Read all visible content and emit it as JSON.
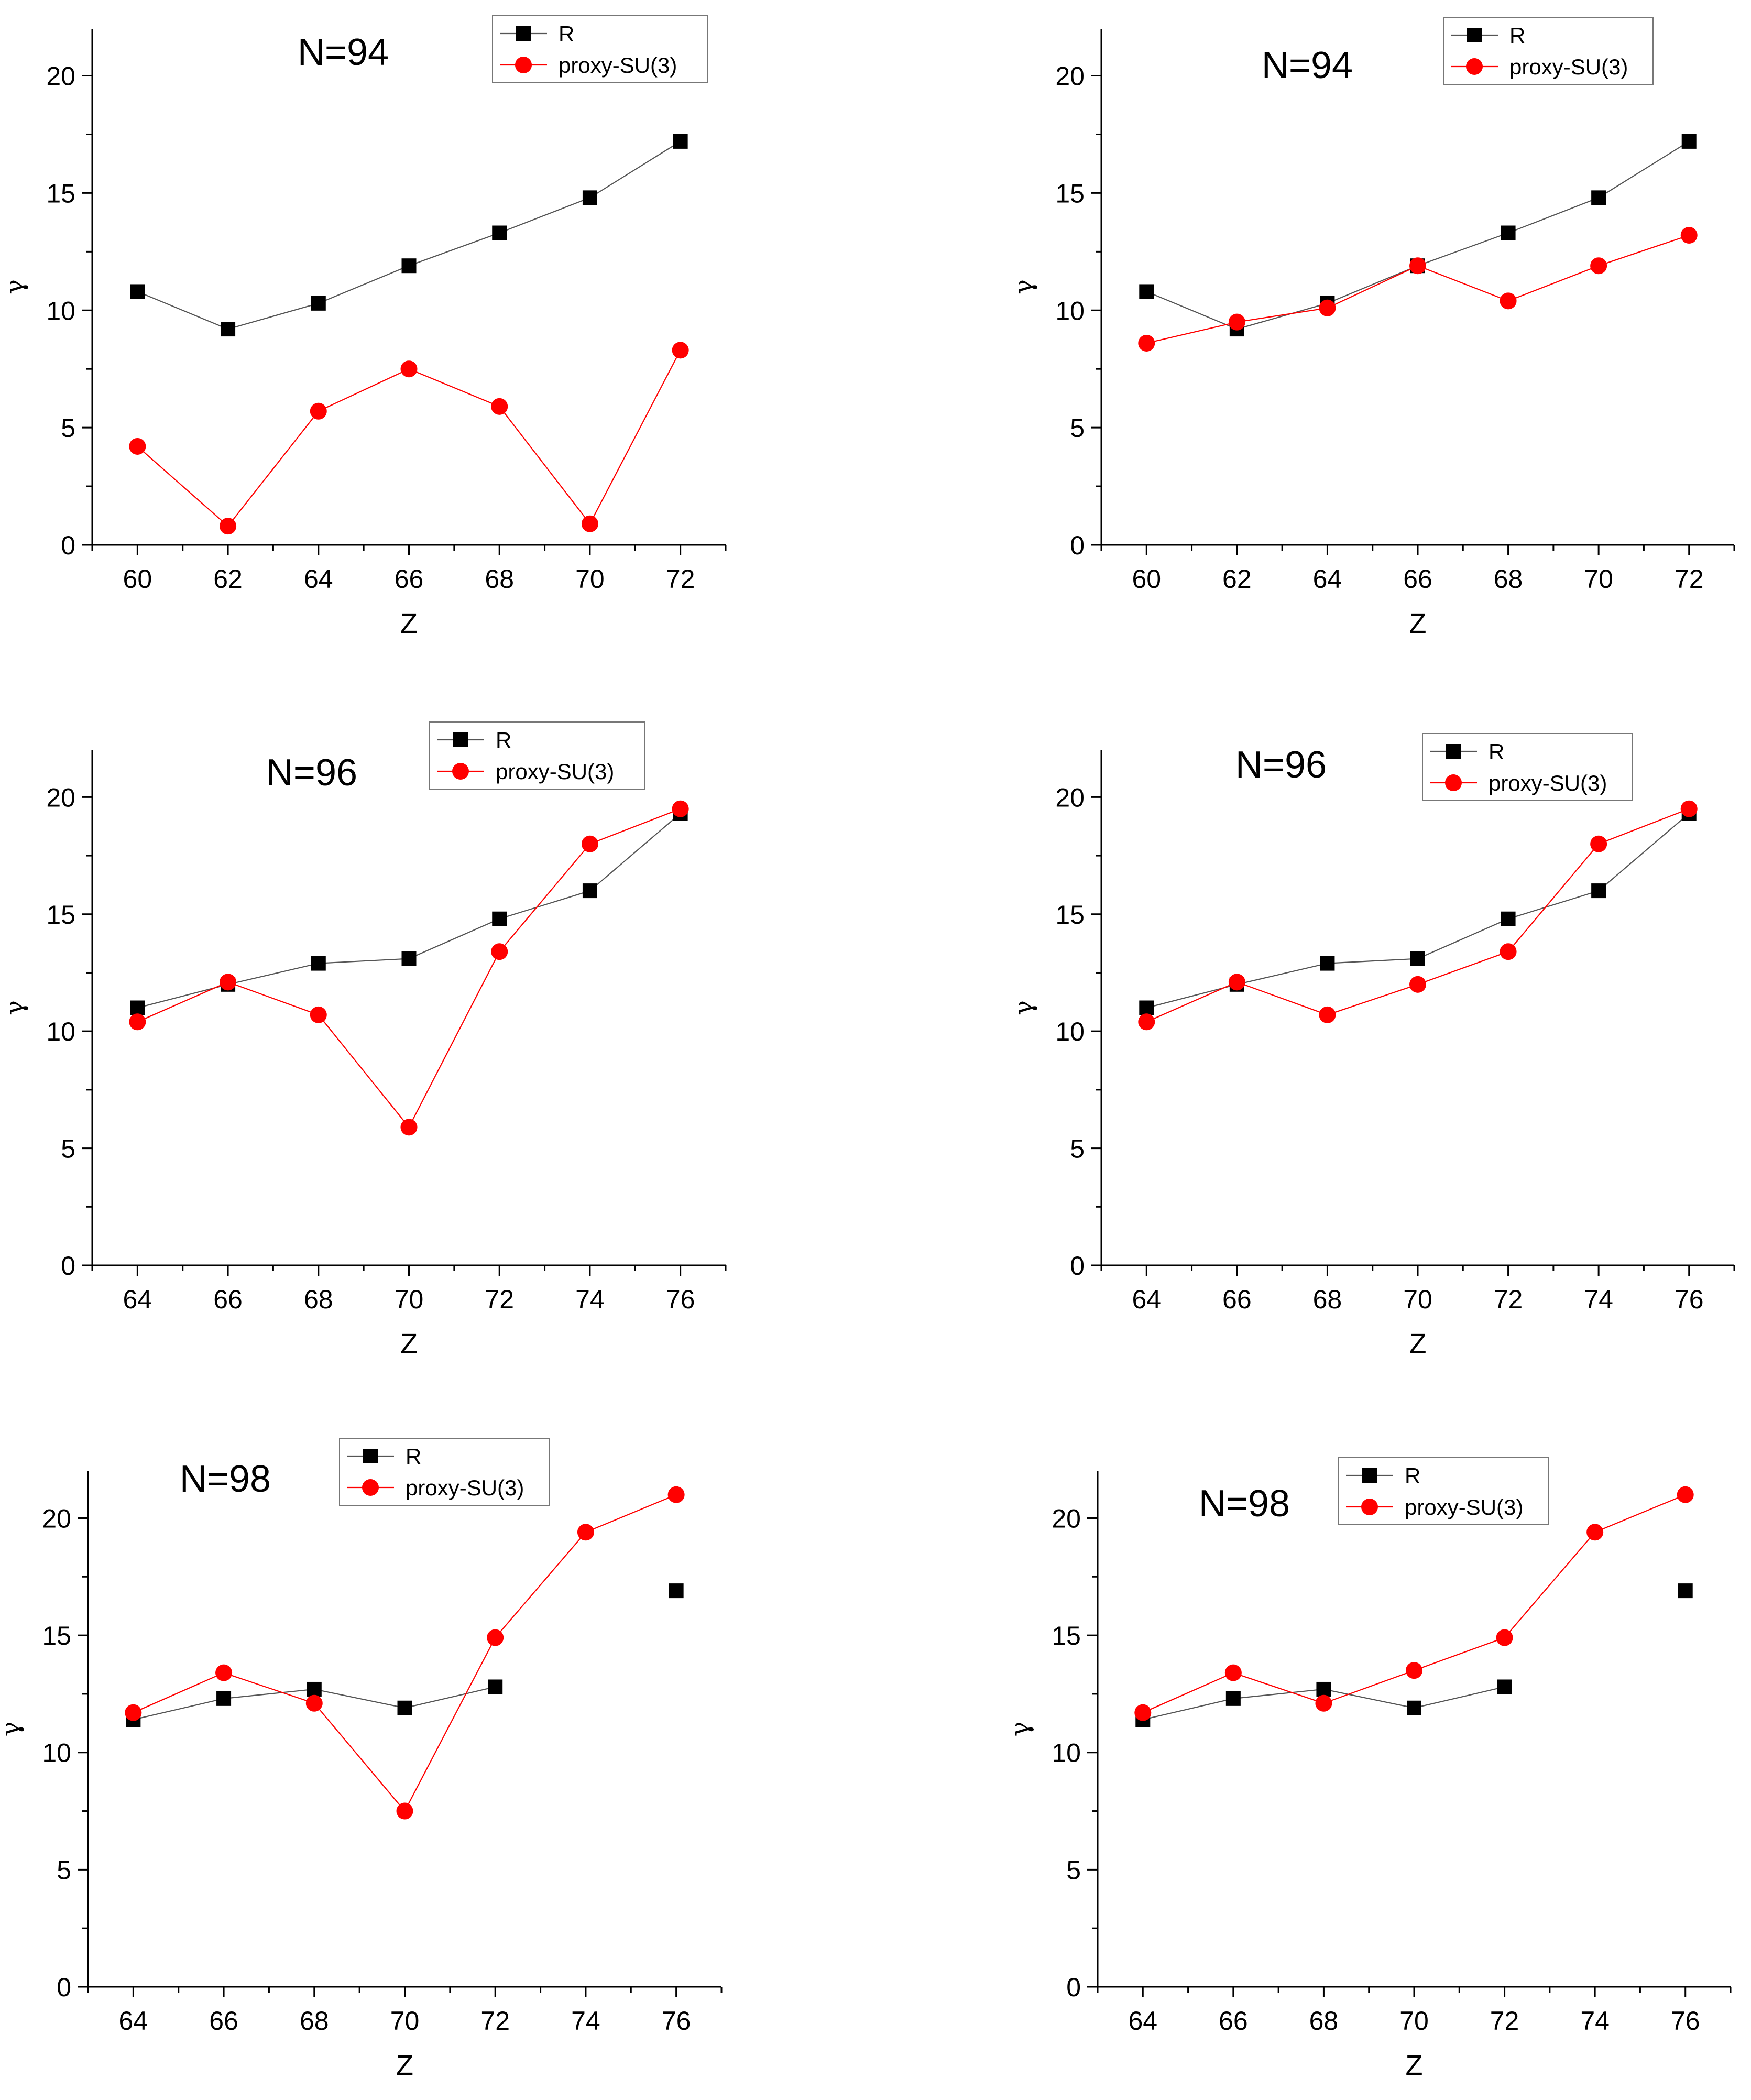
{
  "figure": {
    "colors": {
      "R": "#000000",
      "proxy": "#ff0000",
      "r_line": "#555555"
    }
  },
  "chart_data": [
    {
      "type": "line",
      "title": "N=94",
      "xlabel": "Z",
      "ylabel": "γ",
      "xlim": [
        59,
        73
      ],
      "ylim": [
        0,
        22
      ],
      "xticks": [
        60,
        62,
        64,
        66,
        68,
        70,
        72
      ],
      "yticks": [
        0,
        5,
        10,
        15,
        20
      ],
      "legend_position": "top-right",
      "series": [
        {
          "name": "R",
          "marker": "square",
          "points": [
            [
              60,
              10.8
            ],
            [
              62,
              9.2
            ],
            [
              64,
              10.3
            ],
            [
              66,
              11.9
            ],
            [
              68,
              13.3
            ],
            [
              70,
              14.8
            ],
            [
              72,
              17.2
            ]
          ],
          "connected": [
            [
              0,
              6
            ]
          ]
        },
        {
          "name": "proxy-SU(3)",
          "marker": "circle",
          "points": [
            [
              60,
              4.2
            ],
            [
              62,
              0.8
            ],
            [
              64,
              5.7
            ],
            [
              66,
              7.5
            ],
            [
              68,
              5.9
            ],
            [
              70,
              0.9
            ],
            [
              72,
              8.3
            ]
          ],
          "connected": [
            [
              0,
              6
            ]
          ]
        }
      ]
    },
    {
      "type": "line",
      "title": "N=94",
      "xlabel": "Z",
      "ylabel": "γ",
      "xlim": [
        59,
        73
      ],
      "ylim": [
        0,
        22
      ],
      "xticks": [
        60,
        62,
        64,
        66,
        68,
        70,
        72
      ],
      "yticks": [
        0,
        5,
        10,
        15,
        20
      ],
      "legend_position": "top-right",
      "series": [
        {
          "name": "R",
          "marker": "square",
          "points": [
            [
              60,
              10.8
            ],
            [
              62,
              9.2
            ],
            [
              64,
              10.3
            ],
            [
              66,
              11.9
            ],
            [
              68,
              13.3
            ],
            [
              70,
              14.8
            ],
            [
              72,
              17.2
            ]
          ],
          "connected": [
            [
              0,
              6
            ]
          ]
        },
        {
          "name": "proxy-SU(3)",
          "marker": "circle",
          "points": [
            [
              60,
              8.6
            ],
            [
              62,
              9.5
            ],
            [
              64,
              10.1
            ],
            [
              66,
              11.9
            ],
            [
              68,
              10.4
            ],
            [
              70,
              11.9
            ],
            [
              72,
              13.2
            ]
          ],
          "connected": [
            [
              0,
              6
            ]
          ]
        }
      ]
    },
    {
      "type": "line",
      "title": "N=96",
      "xlabel": "Z",
      "ylabel": "γ",
      "xlim": [
        63,
        77
      ],
      "ylim": [
        0,
        22
      ],
      "xticks": [
        64,
        66,
        68,
        70,
        72,
        74,
        76
      ],
      "yticks": [
        0,
        5,
        10,
        15,
        20
      ],
      "legend_position": "top-right",
      "series": [
        {
          "name": "R",
          "marker": "square",
          "points": [
            [
              64,
              11.0
            ],
            [
              66,
              12.0
            ],
            [
              68,
              12.9
            ],
            [
              70,
              13.1
            ],
            [
              72,
              14.8
            ],
            [
              74,
              16.0
            ],
            [
              76,
              19.3
            ]
          ],
          "connected": [
            [
              0,
              6
            ]
          ]
        },
        {
          "name": "proxy-SU(3)",
          "marker": "circle",
          "points": [
            [
              64,
              10.4
            ],
            [
              66,
              12.1
            ],
            [
              68,
              10.7
            ],
            [
              70,
              5.9
            ],
            [
              72,
              13.4
            ],
            [
              74,
              18.0
            ],
            [
              76,
              19.5
            ]
          ],
          "connected": [
            [
              0,
              6
            ]
          ]
        }
      ]
    },
    {
      "type": "line",
      "title": "N=96",
      "xlabel": "Z",
      "ylabel": "γ",
      "xlim": [
        63,
        77
      ],
      "ylim": [
        0,
        22
      ],
      "xticks": [
        64,
        66,
        68,
        70,
        72,
        74,
        76
      ],
      "yticks": [
        0,
        5,
        10,
        15,
        20
      ],
      "legend_position": "top-right",
      "series": [
        {
          "name": "R",
          "marker": "square",
          "points": [
            [
              64,
              11.0
            ],
            [
              66,
              12.0
            ],
            [
              68,
              12.9
            ],
            [
              70,
              13.1
            ],
            [
              72,
              14.8
            ],
            [
              74,
              16.0
            ],
            [
              76,
              19.3
            ]
          ],
          "connected": [
            [
              0,
              6
            ]
          ]
        },
        {
          "name": "proxy-SU(3)",
          "marker": "circle",
          "points": [
            [
              64,
              10.4
            ],
            [
              66,
              12.1
            ],
            [
              68,
              10.7
            ],
            [
              70,
              12.0
            ],
            [
              72,
              13.4
            ],
            [
              74,
              18.0
            ],
            [
              76,
              19.5
            ]
          ],
          "connected": [
            [
              0,
              6
            ]
          ]
        }
      ]
    },
    {
      "type": "line",
      "title": "N=98",
      "xlabel": "Z",
      "ylabel": "γ",
      "xlim": [
        63,
        77
      ],
      "ylim": [
        0,
        22
      ],
      "xticks": [
        64,
        66,
        68,
        70,
        72,
        74,
        76
      ],
      "yticks": [
        0,
        5,
        10,
        15,
        20
      ],
      "legend_position": "top-center",
      "series": [
        {
          "name": "R",
          "marker": "square",
          "points": [
            [
              64,
              11.4
            ],
            [
              66,
              12.3
            ],
            [
              68,
              12.7
            ],
            [
              70,
              11.9
            ],
            [
              72,
              12.8
            ],
            [
              76,
              16.9
            ]
          ],
          "connected": [
            [
              0,
              4
            ]
          ]
        },
        {
          "name": "proxy-SU(3)",
          "marker": "circle",
          "points": [
            [
              64,
              11.7
            ],
            [
              66,
              13.4
            ],
            [
              68,
              12.1
            ],
            [
              70,
              7.5
            ],
            [
              72,
              14.9
            ],
            [
              74,
              19.4
            ],
            [
              76,
              21.0
            ]
          ],
          "connected": [
            [
              0,
              6
            ]
          ]
        }
      ]
    },
    {
      "type": "line",
      "title": "N=98",
      "xlabel": "Z",
      "ylabel": "γ",
      "xlim": [
        63,
        77
      ],
      "ylim": [
        0,
        22
      ],
      "xticks": [
        64,
        66,
        68,
        70,
        72,
        74,
        76
      ],
      "yticks": [
        0,
        5,
        10,
        15,
        20
      ],
      "legend_position": "top-center",
      "series": [
        {
          "name": "R",
          "marker": "square",
          "points": [
            [
              64,
              11.4
            ],
            [
              66,
              12.3
            ],
            [
              68,
              12.7
            ],
            [
              70,
              11.9
            ],
            [
              72,
              12.8
            ],
            [
              76,
              16.9
            ]
          ],
          "connected": [
            [
              0,
              4
            ]
          ]
        },
        {
          "name": "proxy-SU(3)",
          "marker": "circle",
          "points": [
            [
              64,
              11.7
            ],
            [
              66,
              13.4
            ],
            [
              68,
              12.1
            ],
            [
              70,
              13.5
            ],
            [
              72,
              14.9
            ],
            [
              74,
              19.4
            ],
            [
              76,
              21.0
            ]
          ],
          "connected": [
            [
              0,
              6
            ]
          ]
        }
      ]
    }
  ]
}
